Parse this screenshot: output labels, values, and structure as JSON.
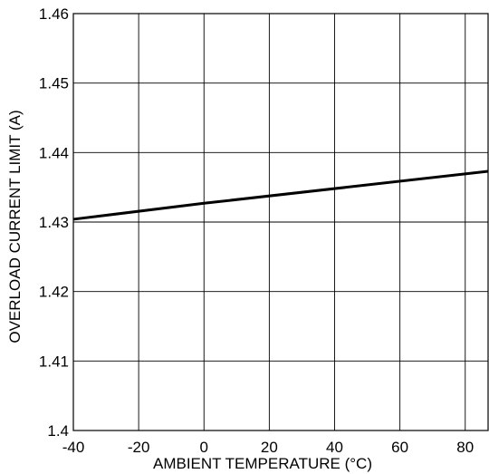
{
  "chart_data": {
    "type": "line",
    "title": "",
    "xlabel": "AMBIENT TEMPERATURE (°C)",
    "ylabel": "OVERLOAD CURRENT LIMIT (A)",
    "xlim": [
      -40,
      87
    ],
    "ylim": [
      1.4,
      1.46
    ],
    "x_ticks": [
      -40,
      -20,
      0,
      20,
      40,
      60,
      80
    ],
    "x_tick_labels": [
      "-40",
      "-20",
      "0",
      "20",
      "40",
      "60",
      "80"
    ],
    "y_ticks": [
      1.4,
      1.41,
      1.42,
      1.43,
      1.44,
      1.45,
      1.46
    ],
    "y_tick_labels": [
      "1.4",
      "1.41",
      "1.42",
      "1.43",
      "1.44",
      "1.45",
      "1.46"
    ],
    "grid": true,
    "series": [
      {
        "x": [
          -40,
          0,
          87
        ],
        "y": [
          1.4304,
          1.4327,
          1.4373
        ]
      }
    ],
    "colors": {
      "line": "#000000",
      "grid": "#000000",
      "background": "#ffffff"
    }
  }
}
